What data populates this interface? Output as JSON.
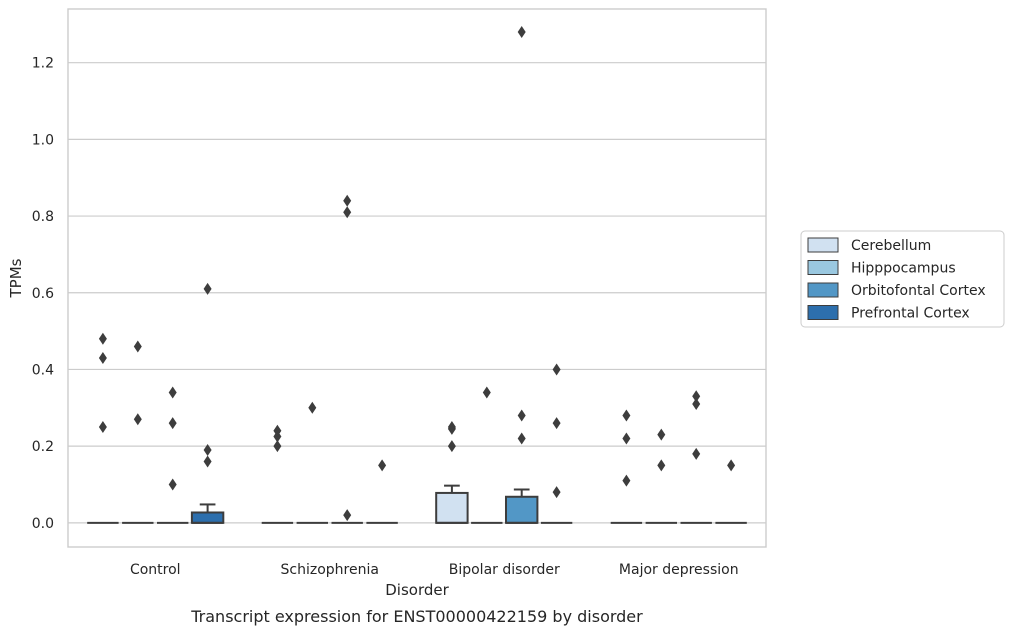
{
  "chart_data": {
    "type": "box",
    "caption": "Transcript expression for ENST00000422159 by disorder",
    "xlabel": "Disorder",
    "ylabel": "TPMs",
    "ylim": [
      -0.063,
      1.34
    ],
    "yticks": [
      0.0,
      0.2,
      0.4,
      0.6,
      0.8,
      1.0,
      1.2
    ],
    "ytick_labels": [
      "0.0",
      "0.2",
      "0.4",
      "0.6",
      "0.8",
      "1.0",
      "1.2"
    ],
    "grid": "horizontal",
    "legend_position": "right",
    "categories": [
      "Control",
      "Schizophrenia",
      "Bipolar disorder",
      "Major depression"
    ],
    "series": [
      {
        "name": "Cerebellum",
        "color": "#d1e1f1",
        "boxes": [
          {
            "q1": 0,
            "median": 0,
            "q3": 0,
            "whisker_low": 0,
            "whisker_high": 0,
            "outliers": [
              0.25,
              0.43,
              0.48
            ]
          },
          {
            "q1": 0,
            "median": 0,
            "q3": 0,
            "whisker_low": 0,
            "whisker_high": 0,
            "outliers": [
              0.2,
              0.225,
              0.24
            ]
          },
          {
            "q1": 0,
            "median": 0,
            "q3": 0.078,
            "whisker_low": 0,
            "whisker_high": 0.097,
            "outliers": [
              0.2,
              0.245,
              0.25
            ]
          },
          {
            "q1": 0,
            "median": 0,
            "q3": 0,
            "whisker_low": 0,
            "whisker_high": 0,
            "outliers": [
              0.11,
              0.22,
              0.28
            ]
          }
        ]
      },
      {
        "name": "Hipppocampus",
        "color": "#9ac8e0",
        "boxes": [
          {
            "q1": 0,
            "median": 0,
            "q3": 0,
            "whisker_low": 0,
            "whisker_high": 0,
            "outliers": [
              0.27,
              0.46
            ]
          },
          {
            "q1": 0,
            "median": 0,
            "q3": 0,
            "whisker_low": 0,
            "whisker_high": 0,
            "outliers": [
              0.3
            ]
          },
          {
            "q1": 0,
            "median": 0,
            "q3": 0,
            "whisker_low": 0,
            "whisker_high": 0,
            "outliers": [
              0.34
            ]
          },
          {
            "q1": 0,
            "median": 0,
            "q3": 0,
            "whisker_low": 0,
            "whisker_high": 0,
            "outliers": [
              0.15,
              0.23
            ]
          }
        ]
      },
      {
        "name": "Orbitofontal Cortex",
        "color": "#5297c6",
        "boxes": [
          {
            "q1": 0,
            "median": 0,
            "q3": 0,
            "whisker_low": 0,
            "whisker_high": 0,
            "outliers": [
              0.1,
              0.26,
              0.34
            ]
          },
          {
            "q1": 0,
            "median": 0,
            "q3": 0,
            "whisker_low": 0,
            "whisker_high": 0,
            "outliers": [
              0.02,
              0.81,
              0.84
            ]
          },
          {
            "q1": 0,
            "median": 0,
            "q3": 0.068,
            "whisker_low": 0,
            "whisker_high": 0.087,
            "outliers": [
              0.22,
              0.28,
              1.28
            ]
          },
          {
            "q1": 0,
            "median": 0,
            "q3": 0,
            "whisker_low": 0,
            "whisker_high": 0,
            "outliers": [
              0.18,
              0.31,
              0.33
            ]
          }
        ]
      },
      {
        "name": "Prefrontal Cortex",
        "color": "#2d6fad",
        "boxes": [
          {
            "q1": 0,
            "median": 0,
            "q3": 0.027,
            "whisker_low": 0,
            "whisker_high": 0.048,
            "outliers": [
              0.16,
              0.19,
              0.61
            ]
          },
          {
            "q1": 0,
            "median": 0,
            "q3": 0,
            "whisker_low": 0,
            "whisker_high": 0,
            "outliers": [
              0.15
            ]
          },
          {
            "q1": 0,
            "median": 0,
            "q3": 0,
            "whisker_low": 0,
            "whisker_high": 0,
            "outliers": [
              0.08,
              0.26,
              0.4
            ]
          },
          {
            "q1": 0,
            "median": 0,
            "q3": 0,
            "whisker_low": 0,
            "whisker_high": 0,
            "outliers": [
              0.15
            ]
          }
        ]
      }
    ]
  }
}
